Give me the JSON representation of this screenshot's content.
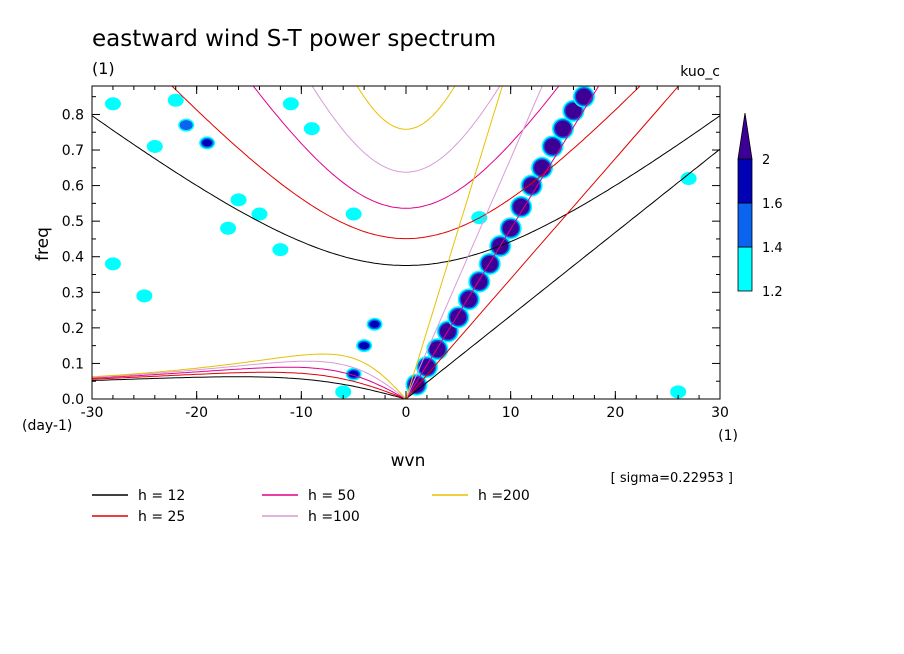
{
  "chart_data": {
    "type": "contour",
    "title": "eastward wind S-T power spectrum",
    "subtitle": "(1)",
    "run_label": "kuo_c",
    "xlabel": "wvn",
    "x_unit": "(1)",
    "ylabel": "freq",
    "y_unit": "(day-1)",
    "xlim": [
      -30,
      30
    ],
    "ylim": [
      0,
      0.88
    ],
    "x_ticks": [
      -30,
      -20,
      -10,
      0,
      10,
      20,
      30
    ],
    "x_tick_labels": [
      "-30",
      "-20",
      "-10",
      "0",
      "10",
      "20",
      "30"
    ],
    "y_ticks": [
      0,
      0.1,
      0.2,
      0.3,
      0.4,
      0.5,
      0.6,
      0.7,
      0.8
    ],
    "y_tick_labels": [
      "0.0",
      "0.1",
      "0.2",
      "0.3",
      "0.4",
      "0.5",
      "0.6",
      "0.7",
      "0.8"
    ],
    "sigma_label": "[ sigma=0.22953 ]",
    "colorbar": {
      "levels": [
        1.2,
        1.4,
        1.6,
        2
      ],
      "level_labels": [
        "1.2",
        "1.4",
        "1.6",
        "2"
      ],
      "colors": [
        "#00ffff",
        "#0a64f0",
        "#0000b4",
        "#3c0096"
      ]
    },
    "dispersion_curves": [
      {
        "h": 12,
        "label": "h = 12",
        "color": "#000000"
      },
      {
        "h": 25,
        "label": "h = 25",
        "color": "#e00000"
      },
      {
        "h": 50,
        "label": "h = 50",
        "color": "#e0008c"
      },
      {
        "h": 100,
        "label": "h =100",
        "color": "#d89ad8"
      },
      {
        "h": 200,
        "label": "h =200",
        "color": "#e8c000"
      }
    ],
    "spectral_peak_ridge": [
      {
        "k": 1,
        "f": 0.04,
        "level": 2
      },
      {
        "k": 2,
        "f": 0.09,
        "level": 2
      },
      {
        "k": 3,
        "f": 0.14,
        "level": 2
      },
      {
        "k": 4,
        "f": 0.19,
        "level": 2
      },
      {
        "k": 5,
        "f": 0.23,
        "level": 2
      },
      {
        "k": 6,
        "f": 0.28,
        "level": 2
      },
      {
        "k": 7,
        "f": 0.33,
        "level": 2
      },
      {
        "k": 8,
        "f": 0.38,
        "level": 2
      },
      {
        "k": 9,
        "f": 0.43,
        "level": 2
      },
      {
        "k": 10,
        "f": 0.48,
        "level": 2
      },
      {
        "k": 11,
        "f": 0.54,
        "level": 2
      },
      {
        "k": 12,
        "f": 0.6,
        "level": 2
      },
      {
        "k": 13,
        "f": 0.65,
        "level": 2
      },
      {
        "k": 14,
        "f": 0.71,
        "level": 2
      },
      {
        "k": 15,
        "f": 0.76,
        "level": 2
      },
      {
        "k": 16,
        "f": 0.81,
        "level": 2
      },
      {
        "k": 17,
        "f": 0.85,
        "level": 2
      }
    ],
    "scattered_patches": [
      {
        "k": -3,
        "f": 0.21,
        "level": 1.6
      },
      {
        "k": -4,
        "f": 0.15,
        "level": 1.6
      },
      {
        "k": -5,
        "f": 0.07,
        "level": 1.6
      },
      {
        "k": -19,
        "f": 0.72,
        "level": 1.6
      },
      {
        "k": -21,
        "f": 0.77,
        "level": 1.4
      },
      {
        "k": -24,
        "f": 0.71,
        "level": 1.2
      },
      {
        "k": -16,
        "f": 0.56,
        "level": 1.2
      },
      {
        "k": -17,
        "f": 0.48,
        "level": 1.2
      },
      {
        "k": -12,
        "f": 0.42,
        "level": 1.2
      },
      {
        "k": -11,
        "f": 0.83,
        "level": 1.2
      },
      {
        "k": -9,
        "f": 0.76,
        "level": 1.2
      },
      {
        "k": -5,
        "f": 0.52,
        "level": 1.2
      },
      {
        "k": -14,
        "f": 0.52,
        "level": 1.2
      },
      {
        "k": -28,
        "f": 0.38,
        "level": 1.2
      },
      {
        "k": -25,
        "f": 0.29,
        "level": 1.2
      },
      {
        "k": -22,
        "f": 0.84,
        "level": 1.2
      },
      {
        "k": 7,
        "f": 0.51,
        "level": 1.2
      },
      {
        "k": 27,
        "f": 0.62,
        "level": 1.2
      },
      {
        "k": 26,
        "f": 0.02,
        "level": 1.2
      },
      {
        "k": -28,
        "f": 0.83,
        "level": 1.2
      },
      {
        "k": -6,
        "f": 0.02,
        "level": 1.2
      }
    ],
    "legend_position": "below"
  }
}
